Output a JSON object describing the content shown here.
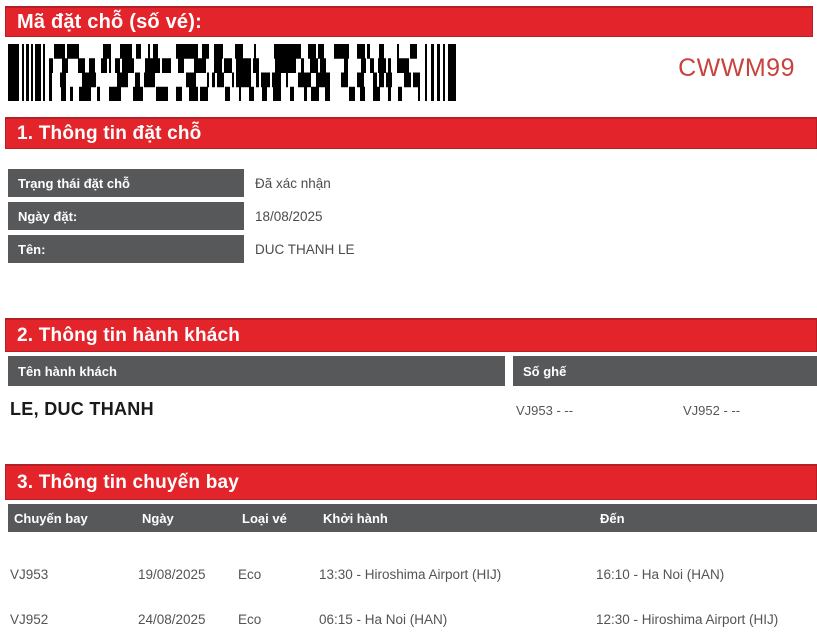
{
  "colors": {
    "accent_red": "#e3242b",
    "dark_cell": "#57585a",
    "code_red": "#c7433c"
  },
  "header": {
    "title": "Mã đặt chỗ (số vé):",
    "booking_code": "CWWM99",
    "barcode": "pdf417-barcode"
  },
  "section1": {
    "title": "1. Thông tin đặt chỗ",
    "rows": [
      {
        "label": "Trạng thái đặt chỗ",
        "value": "Đã xác nhận"
      },
      {
        "label": "Ngày đặt:",
        "value": "18/08/2025"
      },
      {
        "label": "Tên:",
        "value": "DUC THANH LE"
      }
    ]
  },
  "section2": {
    "title": "2. Thông tin hành khách",
    "columns": {
      "name": "Tên hành khách",
      "seat": "Số ghế"
    },
    "passengers": [
      {
        "name": "LE, DUC THANH",
        "seats": [
          "VJ953 - --",
          "VJ952 - --"
        ]
      }
    ]
  },
  "section3": {
    "title": "3. Thông tin chuyến bay",
    "columns": [
      "Chuyến bay",
      "Ngày",
      "Loại vé",
      "Khởi hành",
      "Đến"
    ],
    "flights": [
      {
        "flight": "VJ953",
        "date": "19/08/2025",
        "fare": "Eco",
        "departure": "13:30 - Hiroshima Airport (HIJ)",
        "arrival": "16:10 - Ha Noi (HAN)"
      },
      {
        "flight": "VJ952",
        "date": "24/08/2025",
        "fare": "Eco",
        "departure": "06:15 - Ha Noi (HAN)",
        "arrival": "12:30 - Hiroshima Airport (HIJ)"
      }
    ]
  }
}
